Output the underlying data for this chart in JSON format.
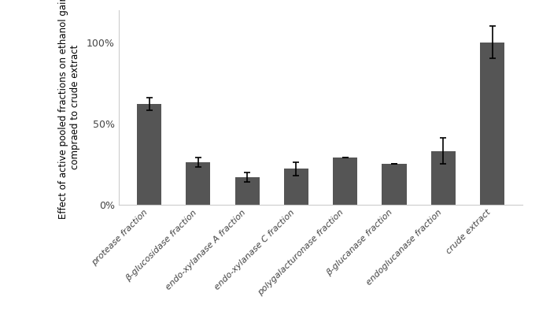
{
  "categories": [
    "protease fraction",
    "β-glucosidase fraction",
    "endo-xylanase A fraction",
    "endo-xylanase C fraction",
    "polygalacturonase fraction",
    "β-glucanase fraction",
    "endoglucanase fraction",
    "crude extract"
  ],
  "values": [
    62,
    26,
    17,
    22,
    29,
    25,
    33,
    100
  ],
  "errors": [
    4,
    3,
    3,
    4,
    0,
    0,
    8,
    10
  ],
  "bar_color": "#555555",
  "ylabel_line1": "Effect of active pooled fractions on ethanol gain",
  "ylabel_line2": "compraed to crude extract",
  "yticks": [
    0,
    50,
    100
  ],
  "ytick_labels": [
    "0%",
    "50%",
    "100%"
  ],
  "ylim": [
    0,
    120
  ],
  "background_color": "#ffffff"
}
